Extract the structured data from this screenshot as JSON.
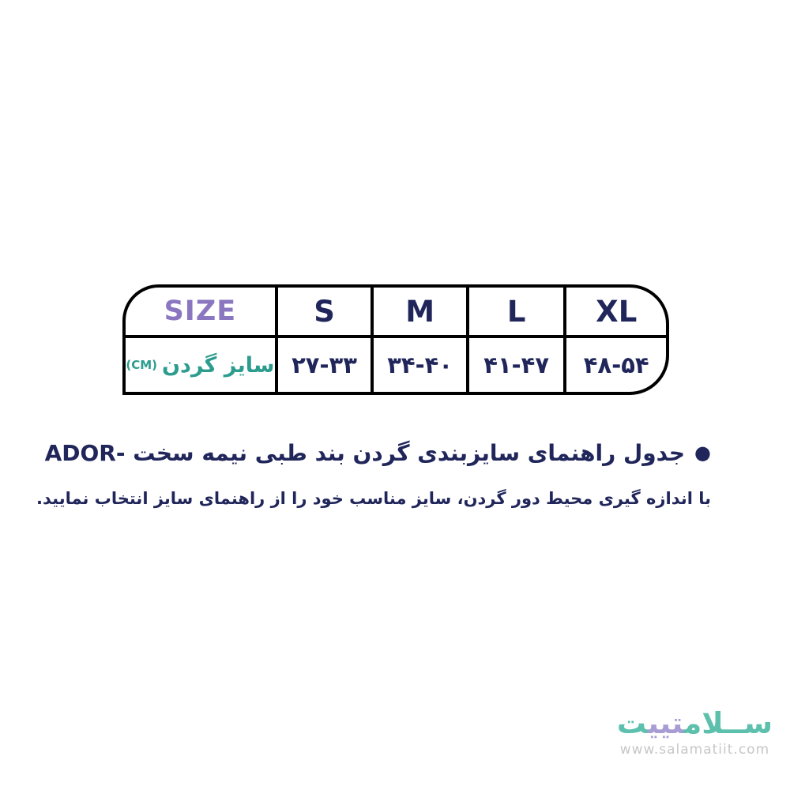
{
  "table": {
    "header": {
      "size_label": "SIZE",
      "columns": [
        "S",
        "M",
        "L",
        "XL"
      ]
    },
    "row": {
      "label": "سایز گردن",
      "unit": "(CM)",
      "values": [
        "۲۷-۳۳",
        "۳۴-۴۰",
        "۴۱-۴۷",
        "۴۸-۵۴"
      ]
    }
  },
  "notes": {
    "bullet": "●",
    "line1": "جدول راهنمای سایزبندی گردن بند طبی نیمه سخت -ADOR",
    "line2": "با اندازه گیری محیط دور گردن، سایز مناسب خود را از راهنمای سایز انتخاب نمایید."
  },
  "footer": {
    "logo_part1": "ســلام‍",
    "logo_part2": "‍تیی‍",
    "logo_part3": "‍ت",
    "url": "www.salamatiit.com"
  },
  "colors": {
    "text_navy": "#20265a",
    "size_purple": "#8b77c0",
    "label_teal": "#2b9c8e",
    "logo_teal": "#5cc0ad",
    "logo_purple": "#a79dd3",
    "url_gray": "#c7c7c7",
    "table_border": "#000000"
  }
}
